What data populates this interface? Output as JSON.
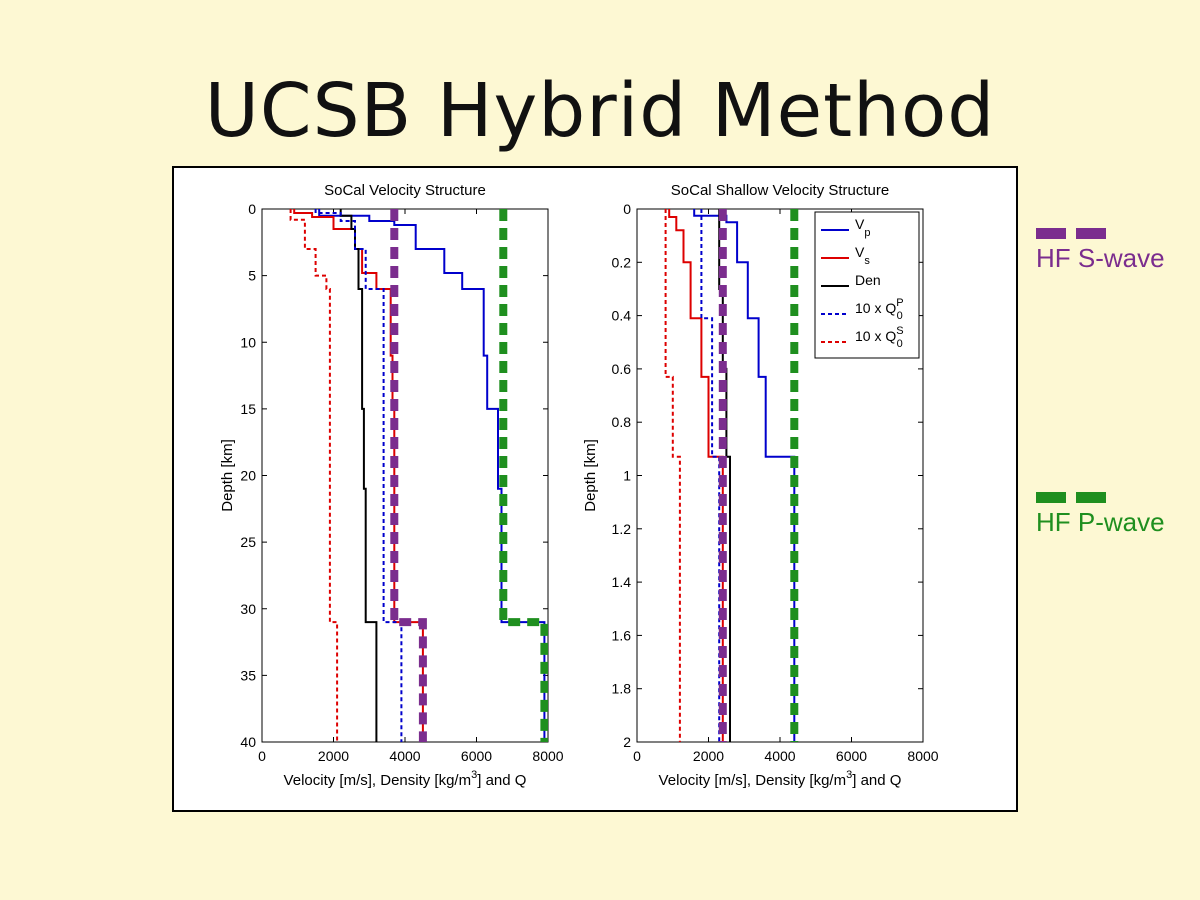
{
  "slide": {
    "title": "UCSB Hybrid Method",
    "side_legend": [
      {
        "label": "HF S-wave",
        "color": "#7b2d8e"
      },
      {
        "label": "HF P-wave",
        "color": "#1f8f1f"
      }
    ]
  },
  "chart_data": [
    {
      "type": "line",
      "title": "SoCal Velocity Structure",
      "xlabel": "Velocity [m/s], Density [kg/m3] and Q",
      "ylabel": "Depth [km]",
      "xlim": [
        0,
        8000
      ],
      "ylim": [
        40,
        0
      ],
      "xticks": [
        0,
        2000,
        4000,
        6000,
        8000
      ],
      "yticks": [
        0,
        5,
        10,
        15,
        20,
        25,
        30,
        35,
        40
      ],
      "grid": false,
      "series": [
        {
          "key": "vp",
          "color": "#0000cc",
          "dash": "",
          "points": [
            [
              1600,
              0
            ],
            [
              1600,
              0.5
            ],
            [
              3000,
              0.5
            ],
            [
              3000,
              0.9
            ],
            [
              3700,
              0.9
            ],
            [
              3700,
              1.2
            ],
            [
              4300,
              1.2
            ],
            [
              4300,
              3
            ],
            [
              5100,
              3
            ],
            [
              5100,
              4.8
            ],
            [
              5600,
              4.8
            ],
            [
              5600,
              6
            ],
            [
              6200,
              6
            ],
            [
              6200,
              11
            ],
            [
              6300,
              11
            ],
            [
              6300,
              15
            ],
            [
              6600,
              15
            ],
            [
              6600,
              21
            ],
            [
              6700,
              21
            ],
            [
              6700,
              31
            ],
            [
              7900,
              31
            ],
            [
              7900,
              40
            ]
          ]
        },
        {
          "key": "vs",
          "color": "#dd0000",
          "dash": "",
          "points": [
            [
              900,
              0
            ],
            [
              900,
              0.3
            ],
            [
              1400,
              0.3
            ],
            [
              1400,
              0.6
            ],
            [
              2000,
              0.6
            ],
            [
              2000,
              1.5
            ],
            [
              2600,
              1.5
            ],
            [
              2600,
              3
            ],
            [
              2800,
              3
            ],
            [
              2800,
              4.8
            ],
            [
              3200,
              4.8
            ],
            [
              3200,
              6
            ],
            [
              3600,
              6
            ],
            [
              3600,
              11
            ],
            [
              3650,
              11
            ],
            [
              3650,
              15
            ],
            [
              3700,
              15
            ],
            [
              3700,
              31
            ],
            [
              4500,
              31
            ],
            [
              4500,
              40
            ]
          ]
        },
        {
          "key": "den",
          "color": "#000000",
          "dash": "",
          "points": [
            [
              2200,
              0
            ],
            [
              2200,
              0.5
            ],
            [
              2500,
              0.5
            ],
            [
              2500,
              1.5
            ],
            [
              2600,
              1.5
            ],
            [
              2600,
              3
            ],
            [
              2700,
              3
            ],
            [
              2700,
              6
            ],
            [
              2800,
              6
            ],
            [
              2800,
              15
            ],
            [
              2850,
              15
            ],
            [
              2850,
              21
            ],
            [
              2900,
              21
            ],
            [
              2900,
              31
            ],
            [
              3200,
              31
            ],
            [
              3200,
              40
            ]
          ]
        },
        {
          "key": "qp",
          "color": "#0000cc",
          "dash": "4,3",
          "points": [
            [
              1500,
              0
            ],
            [
              1500,
              0.3
            ],
            [
              2200,
              0.3
            ],
            [
              2200,
              0.9
            ],
            [
              2600,
              0.9
            ],
            [
              2600,
              3
            ],
            [
              2900,
              3
            ],
            [
              2900,
              6
            ],
            [
              3400,
              6
            ],
            [
              3400,
              31
            ],
            [
              3900,
              31
            ],
            [
              3900,
              40
            ]
          ]
        },
        {
          "key": "qs",
          "color": "#dd0000",
          "dash": "4,3",
          "points": [
            [
              800,
              0
            ],
            [
              800,
              0.8
            ],
            [
              1200,
              0.8
            ],
            [
              1200,
              3
            ],
            [
              1500,
              3
            ],
            [
              1500,
              5
            ],
            [
              1800,
              5
            ],
            [
              1800,
              6
            ],
            [
              1900,
              6
            ],
            [
              1900,
              31
            ],
            [
              2100,
              31
            ],
            [
              2100,
              40
            ]
          ]
        },
        {
          "key": "hf_s",
          "color": "#7b2d8e",
          "dash": "12,7",
          "width": 8,
          "points": [
            [
              3700,
              0
            ],
            [
              3700,
              31
            ],
            [
              4500,
              31
            ],
            [
              4500,
              40
            ]
          ]
        },
        {
          "key": "hf_p",
          "color": "#1f8f1f",
          "dash": "12,7",
          "width": 8,
          "points": [
            [
              6750,
              0
            ],
            [
              6750,
              31
            ],
            [
              7900,
              31
            ],
            [
              7900,
              40
            ]
          ]
        }
      ]
    },
    {
      "type": "line",
      "title": "SoCal Shallow Velocity Structure",
      "xlabel": "Velocity [m/s], Density [kg/m3] and Q",
      "ylabel": "Depth [km]",
      "xlim": [
        0,
        8000
      ],
      "ylim": [
        2,
        0
      ],
      "xticks": [
        0,
        2000,
        4000,
        6000,
        8000
      ],
      "yticks": [
        0,
        0.2,
        0.4,
        0.6,
        0.8,
        1,
        1.2,
        1.4,
        1.6,
        1.8,
        2
      ],
      "grid": false,
      "series": [
        {
          "key": "vp",
          "color": "#0000cc",
          "dash": "",
          "points": [
            [
              1600,
              0
            ],
            [
              1600,
              0.025
            ],
            [
              2500,
              0.025
            ],
            [
              2500,
              0.05
            ],
            [
              2800,
              0.05
            ],
            [
              2800,
              0.2
            ],
            [
              3100,
              0.2
            ],
            [
              3100,
              0.41
            ],
            [
              3400,
              0.41
            ],
            [
              3400,
              0.63
            ],
            [
              3600,
              0.63
            ],
            [
              3600,
              0.93
            ],
            [
              4400,
              0.93
            ],
            [
              4400,
              2
            ]
          ]
        },
        {
          "key": "vs",
          "color": "#dd0000",
          "dash": "",
          "points": [
            [
              900,
              0
            ],
            [
              900,
              0.03
            ],
            [
              1100,
              0.03
            ],
            [
              1100,
              0.08
            ],
            [
              1300,
              0.08
            ],
            [
              1300,
              0.2
            ],
            [
              1500,
              0.2
            ],
            [
              1500,
              0.41
            ],
            [
              1800,
              0.41
            ],
            [
              1800,
              0.63
            ],
            [
              2000,
              0.63
            ],
            [
              2000,
              0.93
            ],
            [
              2400,
              0.93
            ],
            [
              2400,
              2
            ]
          ]
        },
        {
          "key": "den",
          "color": "#000000",
          "dash": "",
          "points": [
            [
              2300,
              0
            ],
            [
              2300,
              0.3
            ],
            [
              2400,
              0.3
            ],
            [
              2400,
              0.6
            ],
            [
              2500,
              0.6
            ],
            [
              2500,
              0.93
            ],
            [
              2600,
              0.93
            ],
            [
              2600,
              2
            ]
          ]
        },
        {
          "key": "qp",
          "color": "#0000cc",
          "dash": "4,3",
          "points": [
            [
              1800,
              0
            ],
            [
              1800,
              0.41
            ],
            [
              2100,
              0.41
            ],
            [
              2100,
              0.93
            ],
            [
              2300,
              0.93
            ],
            [
              2300,
              2
            ]
          ]
        },
        {
          "key": "qs",
          "color": "#dd0000",
          "dash": "4,3",
          "points": [
            [
              800,
              0
            ],
            [
              800,
              0.63
            ],
            [
              1000,
              0.63
            ],
            [
              1000,
              0.93
            ],
            [
              1200,
              0.93
            ],
            [
              1200,
              2
            ]
          ]
        },
        {
          "key": "hf_s",
          "color": "#7b2d8e",
          "dash": "12,7",
          "width": 8,
          "points": [
            [
              2400,
              0
            ],
            [
              2400,
              2
            ]
          ]
        },
        {
          "key": "hf_p",
          "color": "#1f8f1f",
          "dash": "12,7",
          "width": 8,
          "points": [
            [
              4400,
              0
            ],
            [
              4400,
              2
            ]
          ]
        }
      ],
      "legend": {
        "placement": "top-right",
        "entries": [
          {
            "key": "vp",
            "main": "V",
            "sub": "p",
            "sup": "",
            "color": "#0000cc",
            "dash": ""
          },
          {
            "key": "vs",
            "main": "V",
            "sub": "s",
            "sup": "",
            "color": "#dd0000",
            "dash": ""
          },
          {
            "key": "den",
            "main": "Den",
            "sub": "",
            "sup": "",
            "color": "#000000",
            "dash": ""
          },
          {
            "key": "qp",
            "main": "10 x Q",
            "sub": "0",
            "sup": "P",
            "color": "#0000cc",
            "dash": "4,3"
          },
          {
            "key": "qs",
            "main": "10 x Q",
            "sub": "0",
            "sup": "S",
            "color": "#dd0000",
            "dash": "4,3"
          }
        ]
      }
    }
  ]
}
